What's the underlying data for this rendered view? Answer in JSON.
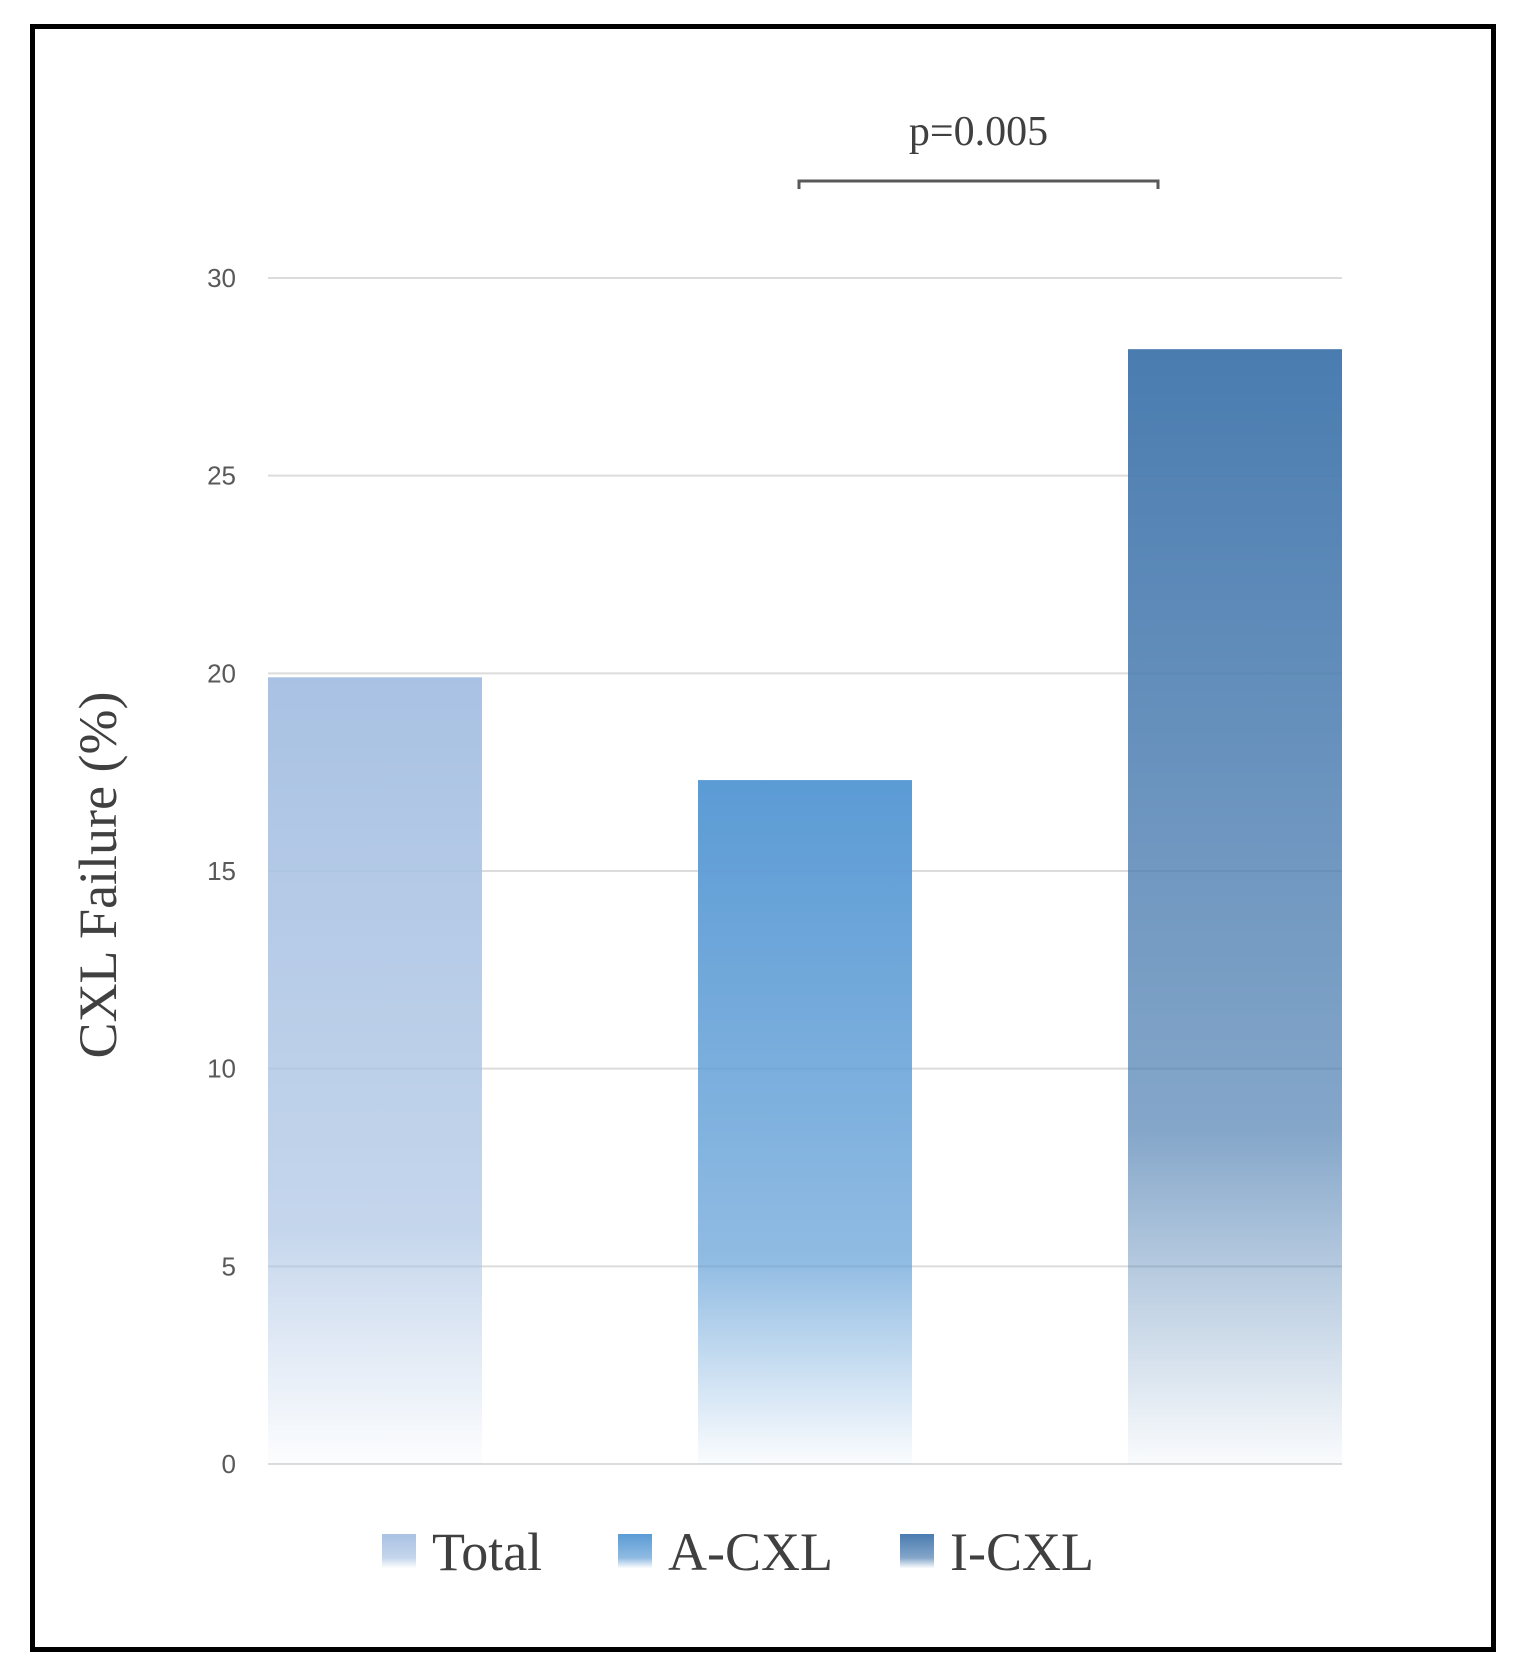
{
  "chart_data": {
    "type": "bar",
    "title": "",
    "xlabel": "",
    "ylabel": "CXL Failure (%)",
    "ylim": [
      0,
      30
    ],
    "yticks": [
      0,
      5,
      10,
      15,
      20,
      25,
      30
    ],
    "grid": true,
    "categories": [
      "Total",
      "A-CXL",
      "I-CXL"
    ],
    "values": [
      19.9,
      17.3,
      28.2
    ],
    "colors": [
      "#a9c2e3",
      "#5b9bd5",
      "#4a7cb0"
    ],
    "legend": {
      "placement": "bottom",
      "entries": [
        "Total",
        "A-CXL",
        "I-CXL"
      ]
    },
    "annotations": [
      {
        "text": "p=0.005",
        "between": [
          "A-CXL",
          "I-CXL"
        ]
      }
    ]
  }
}
